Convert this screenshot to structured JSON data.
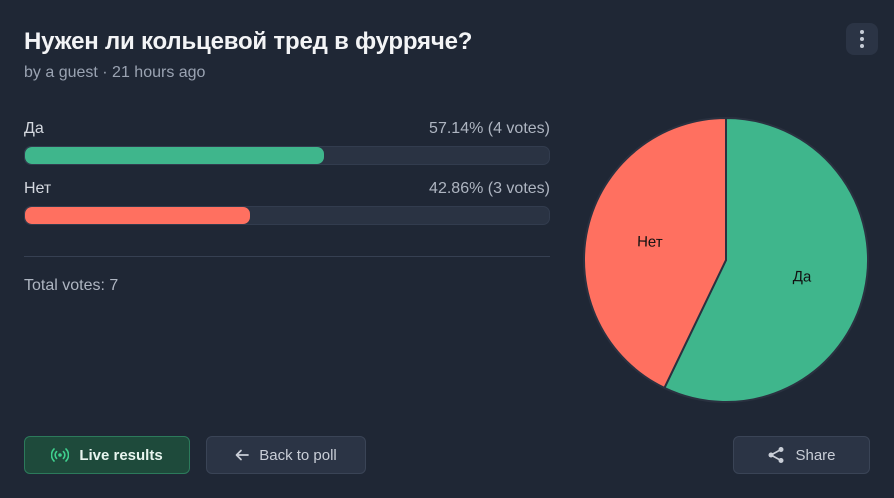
{
  "poll": {
    "title": "Нужен ли кольцевой тред в фурряче?",
    "meta": "by a guest · 21 hours ago",
    "options": [
      {
        "label": "Да",
        "stat": "57.14% (4 votes)",
        "percent": 57.14,
        "votes": 4,
        "color": "#3fb68c"
      },
      {
        "label": "Нет",
        "stat": "42.86% (3 votes)",
        "percent": 42.86,
        "votes": 3,
        "color": "#ff7060"
      }
    ],
    "total": "Total votes: 7"
  },
  "chart_data": {
    "type": "pie",
    "categories": [
      "Да",
      "Нет"
    ],
    "values": [
      4,
      3
    ],
    "colors": [
      "#3fb68c",
      "#ff7060"
    ]
  },
  "buttons": {
    "live_label": "Live results",
    "back_label": "Back to poll",
    "share_label": "Share"
  },
  "icons": {
    "menu": "more-vertical-icon",
    "live": "broadcast-icon",
    "back": "arrow-left-icon",
    "share": "share-icon"
  }
}
